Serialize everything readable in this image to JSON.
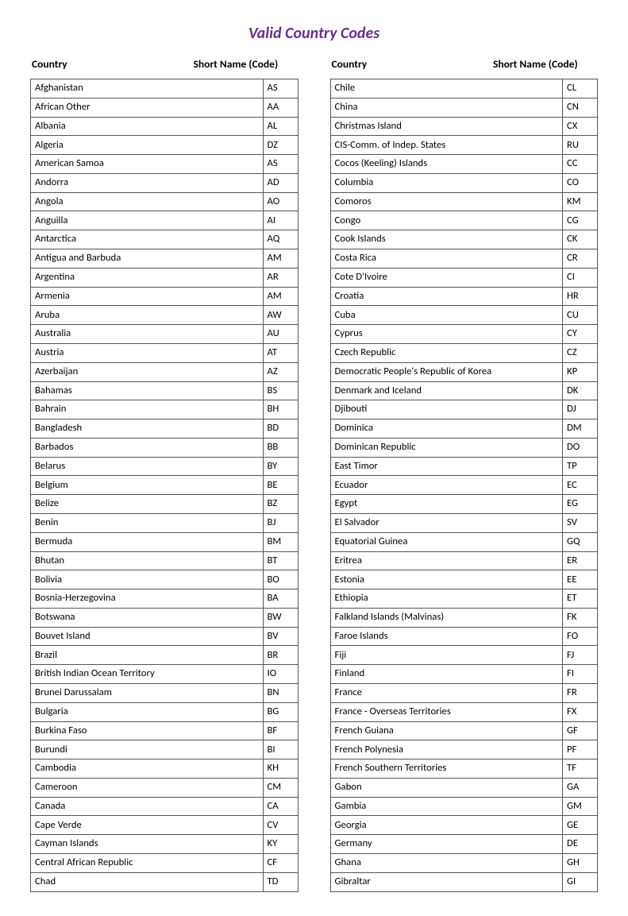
{
  "title": "Valid Country Codes",
  "headers": {
    "country": "Country",
    "code": "Short Name (Code)"
  },
  "left": [
    {
      "country": "Afghanistan",
      "code": "AS"
    },
    {
      "country": "African Other",
      "code": "AA"
    },
    {
      "country": "Albania",
      "code": "AL"
    },
    {
      "country": "Algeria",
      "code": "DZ"
    },
    {
      "country": "American Samoa",
      "code": "AS"
    },
    {
      "country": "Andorra",
      "code": "AD"
    },
    {
      "country": "Angola",
      "code": "AO"
    },
    {
      "country": "Anguilla",
      "code": "AI"
    },
    {
      "country": "Antarctica",
      "code": "AQ"
    },
    {
      "country": "Antigua and Barbuda",
      "code": "AM"
    },
    {
      "country": "Argentina",
      "code": "AR"
    },
    {
      "country": "Armenia",
      "code": "AM"
    },
    {
      "country": "Aruba",
      "code": "AW"
    },
    {
      "country": "Australia",
      "code": "AU"
    },
    {
      "country": "Austria",
      "code": "AT"
    },
    {
      "country": "Azerbaijan",
      "code": "AZ"
    },
    {
      "country": "Bahamas",
      "code": "BS"
    },
    {
      "country": "Bahrain",
      "code": "BH"
    },
    {
      "country": "Bangladesh",
      "code": "BD"
    },
    {
      "country": "Barbados",
      "code": "BB"
    },
    {
      "country": "Belarus",
      "code": "BY"
    },
    {
      "country": "Belgium",
      "code": "BE"
    },
    {
      "country": "Belize",
      "code": "BZ"
    },
    {
      "country": "Benin",
      "code": "BJ"
    },
    {
      "country": "Bermuda",
      "code": "BM"
    },
    {
      "country": "Bhutan",
      "code": "BT"
    },
    {
      "country": "Bolivia",
      "code": "BO"
    },
    {
      "country": "Bosnia-Herzegovina",
      "code": "BA"
    },
    {
      "country": "Botswana",
      "code": "BW"
    },
    {
      "country": "Bouvet Island",
      "code": "BV"
    },
    {
      "country": "Brazil",
      "code": "BR"
    },
    {
      "country": "British Indian Ocean Territory",
      "code": "IO"
    },
    {
      "country": "Brunei Darussalam",
      "code": "BN"
    },
    {
      "country": "Bulgaria",
      "code": "BG"
    },
    {
      "country": "Burkina Faso",
      "code": "BF"
    },
    {
      "country": "Burundi",
      "code": "BI"
    },
    {
      "country": "Cambodia",
      "code": "KH"
    },
    {
      "country": "Cameroon",
      "code": "CM"
    },
    {
      "country": "Canada",
      "code": "CA"
    },
    {
      "country": "Cape Verde",
      "code": "CV"
    },
    {
      "country": "Cayman Islands",
      "code": "KY"
    },
    {
      "country": "Central African Republic",
      "code": "CF"
    },
    {
      "country": "Chad",
      "code": "TD"
    }
  ],
  "right": [
    {
      "country": "Chile",
      "code": "CL"
    },
    {
      "country": "China",
      "code": "CN"
    },
    {
      "country": "Christmas Island",
      "code": "CX"
    },
    {
      "country": "CIS-Comm. of Indep. States",
      "code": "RU"
    },
    {
      "country": "Cocos (Keeling) Islands",
      "code": "CC"
    },
    {
      "country": "Columbia",
      "code": "CO"
    },
    {
      "country": "Comoros",
      "code": "KM"
    },
    {
      "country": "Congo",
      "code": "CG"
    },
    {
      "country": "Cook Islands",
      "code": "CK"
    },
    {
      "country": "Costa Rica",
      "code": "CR"
    },
    {
      "country": "Cote D'Ivoire",
      "code": "CI"
    },
    {
      "country": "Croatia",
      "code": "HR"
    },
    {
      "country": "Cuba",
      "code": "CU"
    },
    {
      "country": "Cyprus",
      "code": "CY"
    },
    {
      "country": "Czech Republic",
      "code": "CZ"
    },
    {
      "country": "Democratic People's Republic of Korea",
      "code": "KP"
    },
    {
      "country": "Denmark and Iceland",
      "code": "DK"
    },
    {
      "country": "Djibouti",
      "code": "DJ"
    },
    {
      "country": "Dominica",
      "code": "DM"
    },
    {
      "country": "Dominican Republic",
      "code": "DO"
    },
    {
      "country": "East Timor",
      "code": "TP"
    },
    {
      "country": "Ecuador",
      "code": "EC"
    },
    {
      "country": "Egypt",
      "code": "EG"
    },
    {
      "country": "El Salvador",
      "code": "SV"
    },
    {
      "country": "Equatorial Guinea",
      "code": "GQ"
    },
    {
      "country": "Eritrea",
      "code": "ER"
    },
    {
      "country": "Estonia",
      "code": "EE"
    },
    {
      "country": "Ethiopia",
      "code": "ET"
    },
    {
      "country": "Falkland Islands (Malvinas)",
      "code": "FK"
    },
    {
      "country": "Faroe Islands",
      "code": "FO"
    },
    {
      "country": "Fiji",
      "code": "FJ"
    },
    {
      "country": "Finland",
      "code": "FI"
    },
    {
      "country": "France",
      "code": "FR"
    },
    {
      "country": "France - Overseas Territories",
      "code": "FX"
    },
    {
      "country": "French Guiana",
      "code": "GF"
    },
    {
      "country": "French Polynesia",
      "code": "PF"
    },
    {
      "country": "French Southern Territories",
      "code": "TF"
    },
    {
      "country": "Gabon",
      "code": "GA"
    },
    {
      "country": "Gambia",
      "code": "GM"
    },
    {
      "country": "Georgia",
      "code": "GE"
    },
    {
      "country": "Germany",
      "code": "DE"
    },
    {
      "country": "Ghana",
      "code": "GH"
    },
    {
      "country": "Gibraltar",
      "code": "GI"
    }
  ],
  "style": {
    "title_color": "#6b2f8f",
    "border_color": "#555555",
    "background_color": "#ffffff",
    "font_family": "Calibri",
    "title_fontsize_pt": 15,
    "body_fontsize_pt": 10
  }
}
